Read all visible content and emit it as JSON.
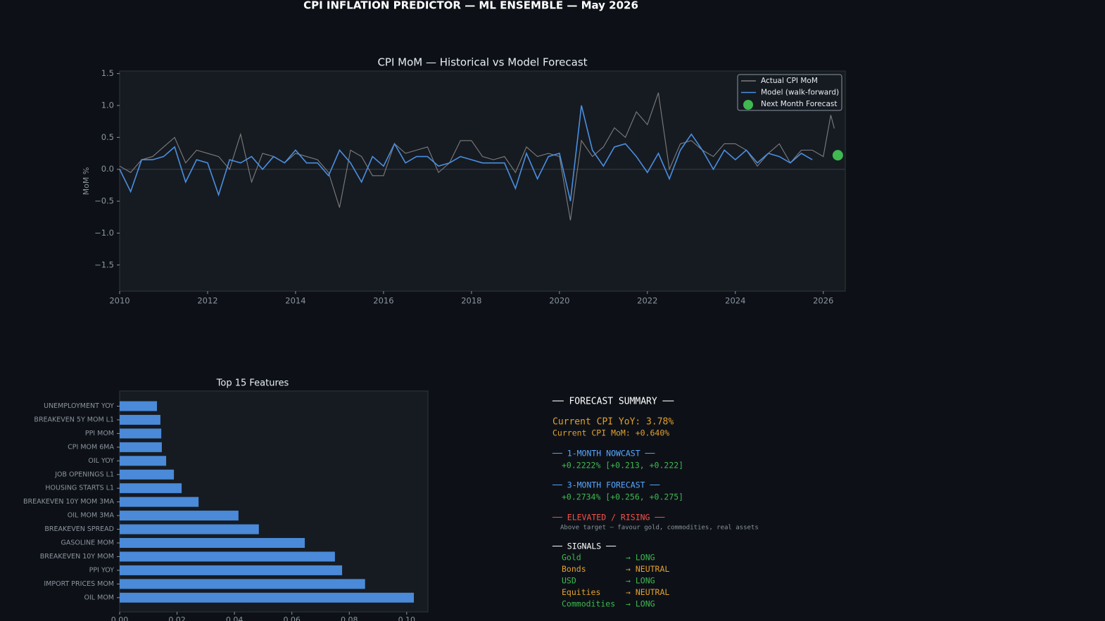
{
  "title": "CPI INFLATION PREDICTOR — ML ENSEMBLE — May 2026",
  "chart_data": [
    {
      "type": "line",
      "title": "CPI MoM — Historical vs Model Forecast",
      "ylabel": "MoM %",
      "xlim": [
        2010,
        2026.5
      ],
      "xticks": [
        2010,
        2012,
        2014,
        2016,
        2018,
        2020,
        2022,
        2024,
        2026
      ],
      "ylim": [
        -1.91,
        1.54
      ],
      "yticks": [
        {
          "value": -1.5,
          "label": "−1.5"
        },
        {
          "value": -1,
          "label": "−1.0"
        },
        {
          "value": -0.5,
          "label": "−0.5"
        },
        {
          "value": 0,
          "label": "0.0"
        },
        0.5,
        {
          "value": 1,
          "label": "1.0"
        },
        1.5
      ],
      "legend": "upper right",
      "series": [
        {
          "name": "Actual CPI MoM",
          "color": "#7d7d7d",
          "kind": "line",
          "x": [
            2010,
            2010.25,
            2010.5,
            2010.75,
            2011,
            2011.25,
            2011.5,
            2011.75,
            2012,
            2012.25,
            2012.5,
            2012.75,
            2013,
            2013.25,
            2013.5,
            2013.75,
            2014,
            2014.25,
            2014.5,
            2014.75,
            2015,
            2015.25,
            2015.5,
            2015.75,
            2016,
            2016.25,
            2016.5,
            2016.75,
            2017,
            2017.25,
            2017.5,
            2017.75,
            2018,
            2018.25,
            2018.5,
            2018.75,
            2019,
            2019.25,
            2019.5,
            2019.75,
            2020,
            2020.25,
            2020.5,
            2020.75,
            2021,
            2021.25,
            2021.5,
            2021.75,
            2022,
            2022.25,
            2022.5,
            2022.75,
            2023,
            2023.25,
            2023.5,
            2023.75,
            2024,
            2024.25,
            2024.5,
            2024.75,
            2025,
            2025.25,
            2025.5,
            2025.75,
            2026,
            2026.17,
            2026.25
          ],
          "values": [
            0.05,
            -0.05,
            0.15,
            0.2,
            0.35,
            0.5,
            0.1,
            0.3,
            0.25,
            0.2,
            0,
            0.55,
            -0.2,
            0.25,
            0.2,
            0.1,
            0.25,
            0.2,
            0.15,
            -0.05,
            -0.6,
            0.3,
            0.2,
            -0.1,
            -0.1,
            0.4,
            0.25,
            0.3,
            0.35,
            -0.05,
            0.1,
            0.45,
            0.45,
            0.2,
            0.15,
            0.2,
            -0.05,
            0.35,
            0.2,
            0.25,
            0.2,
            -0.8,
            0.45,
            0.2,
            0.35,
            0.65,
            0.5,
            0.9,
            0.7,
            1.2,
            0,
            0.4,
            0.45,
            0.3,
            0.2,
            0.4,
            0.4,
            0.3,
            0.05,
            0.25,
            0.4,
            0.1,
            0.3,
            0.3,
            0.2,
            0.85,
            0.64
          ]
        },
        {
          "name": "Model (walk-forward)",
          "color": "#4a8fe0",
          "kind": "line",
          "x": [
            2010,
            2010.25,
            2010.5,
            2010.75,
            2011,
            2011.25,
            2011.5,
            2011.75,
            2012,
            2012.25,
            2012.5,
            2012.75,
            2013,
            2013.25,
            2013.5,
            2013.75,
            2014,
            2014.25,
            2014.5,
            2014.75,
            2015,
            2015.25,
            2015.5,
            2015.75,
            2016,
            2016.25,
            2016.5,
            2016.75,
            2017,
            2017.25,
            2017.5,
            2017.75,
            2018,
            2018.25,
            2018.5,
            2018.75,
            2019,
            2019.25,
            2019.5,
            2019.75,
            2020,
            2020.25,
            2020.5,
            2020.75,
            2021,
            2021.25,
            2021.5,
            2021.75,
            2022,
            2022.25,
            2022.5,
            2022.75,
            2023,
            2023.25,
            2023.5,
            2023.75,
            2024,
            2024.25,
            2024.5,
            2024.75,
            2025,
            2025.25,
            2025.5,
            2025.75
          ],
          "values": [
            0,
            -0.35,
            0.15,
            0.15,
            0.2,
            0.35,
            -0.2,
            0.15,
            0.1,
            -0.4,
            0.15,
            0.1,
            0.2,
            0,
            0.2,
            0.1,
            0.3,
            0.1,
            0.1,
            -0.1,
            0.3,
            0.1,
            -0.2,
            0.2,
            0.05,
            0.4,
            0.1,
            0.2,
            0.2,
            0.05,
            0.1,
            0.2,
            0.15,
            0.1,
            0.1,
            0.1,
            -0.3,
            0.25,
            -0.15,
            0.2,
            0.25,
            -0.5,
            1,
            0.3,
            0.05,
            0.35,
            0.4,
            0.2,
            -0.05,
            0.25,
            -0.15,
            0.3,
            0.55,
            0.3,
            0,
            0.3,
            0.15,
            0.3,
            0.1,
            0.25,
            0.2,
            0.1,
            0.25,
            0.15
          ]
        },
        {
          "name": "Next Month Forecast",
          "color": "#3fb950",
          "kind": "point",
          "x": [
            2026.33
          ],
          "values": [
            0.22
          ]
        }
      ]
    },
    {
      "type": "barh",
      "title": "Top 15 Features",
      "color": "#4a8ad8",
      "categories": [
        "UNEMPLOYMENT YOY",
        "BREAKEVEN 5Y MOM L1",
        "PPI MOM",
        "CPI MOM 6MA",
        "OIL YOY",
        "JOB OPENINGS L1",
        "HOUSING STARTS L1",
        "BREAKEVEN 10Y MOM 3MA",
        "OIL MOM 3MA",
        "BREAKEVEN SPREAD",
        "GASOLINE MOM",
        "BREAKEVEN 10Y MOM",
        "PPI YOY",
        "IMPORT PRICES MOM",
        "OIL MOM"
      ],
      "values": [
        0.013,
        0.0142,
        0.0145,
        0.0147,
        0.0162,
        0.0189,
        0.0216,
        0.0275,
        0.0414,
        0.0485,
        0.0645,
        0.075,
        0.0775,
        0.0855,
        0.1025
      ],
      "xlim": [
        0,
        0.1074
      ],
      "xticks": [
        {
          "value": 0,
          "label": "0.00"
        },
        0.02,
        0.04,
        0.06,
        0.08,
        {
          "value": 0.1,
          "label": "0.10"
        }
      ]
    }
  ],
  "summary": {
    "heading": "──  FORECAST SUMMARY  ──",
    "yoy": "Current CPI YoY:  3.78%",
    "mom": "Current CPI MoM:  +0.640%",
    "nowcast_title": "── 1-MONTH NOWCAST ──",
    "nowcast": "+0.2222%  [+0.213, +0.222]",
    "forecast_title": "── 3-MONTH FORECAST ──",
    "forecast": "+0.2734%  [+0.256, +0.275]",
    "regime": "── ELEVATED / RISING ──",
    "regime_note": "Above target — favour gold, commodities, real assets",
    "signals_title": "── SIGNALS ──",
    "signals": [
      {
        "asset": "Gold",
        "signal": "→ LONG"
      },
      {
        "asset": "Bonds",
        "signal": "→ NEUTRAL"
      },
      {
        "asset": "USD",
        "signal": "→ LONG"
      },
      {
        "asset": "Equities",
        "signal": "→ NEUTRAL"
      },
      {
        "asset": "Commodities",
        "signal": "→ LONG"
      }
    ]
  }
}
